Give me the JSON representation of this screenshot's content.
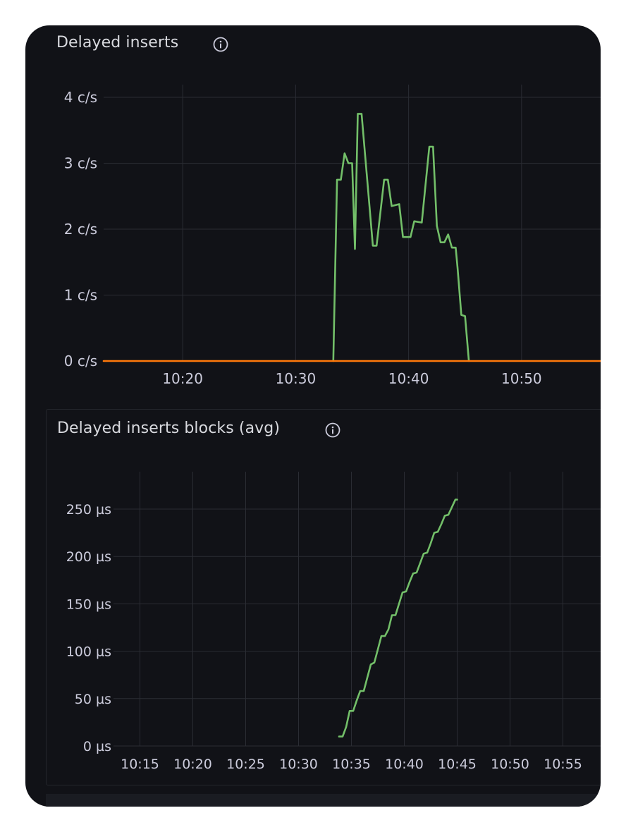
{
  "colors": {
    "background": "#111217",
    "grid": "#2a2c33",
    "axis_text": "#ccccdc",
    "title_text": "#d8d9de",
    "series_green": "#73bf69",
    "series_orange": "#ff780a"
  },
  "panels": [
    {
      "title": "Delayed inserts",
      "info_icon": "info-icon"
    },
    {
      "title": "Delayed inserts blocks (avg)",
      "info_icon": "info-icon"
    }
  ],
  "chart_data": [
    {
      "type": "line",
      "title": "Delayed inserts",
      "xlabel": "",
      "ylabel": "",
      "x_domain": [
        "10:13",
        "10:57"
      ],
      "x_ticks": [
        "10:20",
        "10:30",
        "10:40",
        "10:50"
      ],
      "y_ticks": [
        "0 c/s",
        "1 c/s",
        "2 c/s",
        "3 c/s",
        "4 c/s"
      ],
      "ylim": [
        0,
        4
      ],
      "grid": true,
      "series": [
        {
          "color": "#73bf69",
          "points": [
            [
              "10:33:20",
              0
            ],
            [
              "10:33:40",
              2.75
            ],
            [
              "10:34:00",
              2.75
            ],
            [
              "10:34:20",
              3.15
            ],
            [
              "10:34:40",
              3.0
            ],
            [
              "10:35:00",
              3.0
            ],
            [
              "10:35:15",
              1.7
            ],
            [
              "10:35:30",
              3.75
            ],
            [
              "10:35:50",
              3.75
            ],
            [
              "10:36:50",
              1.75
            ],
            [
              "10:37:10",
              1.75
            ],
            [
              "10:37:50",
              2.75
            ],
            [
              "10:38:10",
              2.75
            ],
            [
              "10:38:30",
              2.35
            ],
            [
              "10:39:10",
              2.38
            ],
            [
              "10:39:30",
              1.88
            ],
            [
              "10:40:10",
              1.88
            ],
            [
              "10:40:30",
              2.12
            ],
            [
              "10:41:10",
              2.1
            ],
            [
              "10:41:50",
              3.25
            ],
            [
              "10:42:10",
              3.25
            ],
            [
              "10:42:30",
              2.05
            ],
            [
              "10:42:50",
              1.8
            ],
            [
              "10:43:10",
              1.8
            ],
            [
              "10:43:30",
              1.92
            ],
            [
              "10:43:50",
              1.72
            ],
            [
              "10:44:10",
              1.72
            ],
            [
              "10:44:20",
              1.42
            ],
            [
              "10:44:40",
              0.7
            ],
            [
              "10:45:00",
              0.68
            ],
            [
              "10:45:20",
              0
            ]
          ]
        },
        {
          "color": "#ff780a",
          "points": [
            [
              "10:13:00",
              0
            ],
            [
              "10:57:00",
              0
            ]
          ]
        }
      ]
    },
    {
      "type": "line",
      "title": "Delayed inserts blocks (avg)",
      "xlabel": "",
      "ylabel": "",
      "x_domain": [
        "10:12:30",
        "10:61:30"
      ],
      "x_ticks": [
        "10:15",
        "10:20",
        "10:25",
        "10:30",
        "10:35",
        "10:40",
        "10:45",
        "10:50",
        "10:55"
      ],
      "y_ticks": [
        "0 µs",
        "50 µs",
        "100 µs",
        "150 µs",
        "200 µs",
        "250 µs"
      ],
      "ylim": [
        0,
        250
      ],
      "grid": true,
      "series": [
        {
          "color": "#73bf69",
          "points": [
            [
              "10:33:50",
              10
            ],
            [
              "10:34:10",
              10
            ],
            [
              "10:34:30",
              20
            ],
            [
              "10:34:50",
              37
            ],
            [
              "10:35:10",
              37
            ],
            [
              "10:35:30",
              48
            ],
            [
              "10:35:50",
              58
            ],
            [
              "10:36:10",
              58
            ],
            [
              "10:36:30",
              72
            ],
            [
              "10:36:50",
              86
            ],
            [
              "10:37:10",
              88
            ],
            [
              "10:37:30",
              102
            ],
            [
              "10:37:50",
              116
            ],
            [
              "10:38:10",
              116
            ],
            [
              "10:38:30",
              123
            ],
            [
              "10:38:50",
              138
            ],
            [
              "10:39:10",
              138
            ],
            [
              "10:39:30",
              150
            ],
            [
              "10:39:50",
              162
            ],
            [
              "10:40:10",
              163
            ],
            [
              "10:40:30",
              173
            ],
            [
              "10:40:50",
              182
            ],
            [
              "10:41:10",
              183
            ],
            [
              "10:41:30",
              193
            ],
            [
              "10:41:50",
              203
            ],
            [
              "10:42:10",
              204
            ],
            [
              "10:42:30",
              214
            ],
            [
              "10:42:50",
              225
            ],
            [
              "10:43:10",
              226
            ],
            [
              "10:43:30",
              234
            ],
            [
              "10:43:50",
              243
            ],
            [
              "10:44:10",
              244
            ],
            [
              "10:44:30",
              252
            ],
            [
              "10:44:50",
              260
            ],
            [
              "10:45:00",
              260
            ]
          ]
        }
      ]
    }
  ]
}
